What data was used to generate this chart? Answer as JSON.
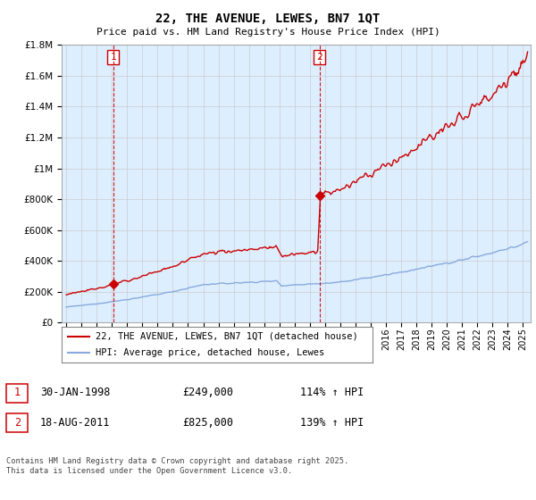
{
  "title": "22, THE AVENUE, LEWES, BN7 1QT",
  "subtitle": "Price paid vs. HM Land Registry's House Price Index (HPI)",
  "footer": "Contains HM Land Registry data © Crown copyright and database right 2025.\nThis data is licensed under the Open Government Licence v3.0.",
  "legend_line1": "22, THE AVENUE, LEWES, BN7 1QT (detached house)",
  "legend_line2": "HPI: Average price, detached house, Lewes",
  "sale1_date": "30-JAN-1998",
  "sale1_price": "£249,000",
  "sale1_hpi": "114% ↑ HPI",
  "sale2_date": "18-AUG-2011",
  "sale2_price": "£825,000",
  "sale2_hpi": "139% ↑ HPI",
  "sale1_year": 1998.08,
  "sale2_year": 2011.63,
  "sale1_price_val": 249000,
  "sale2_price_val": 825000,
  "hpi_color": "#88aadd",
  "price_color": "#cc0000",
  "vline_color": "#cc0000",
  "grid_color": "#cccccc",
  "chart_bg": "#ddeeff",
  "background_color": "#ffffff",
  "ylim_max": 1800000,
  "xlim_min": 1994.7,
  "xlim_max": 2025.5
}
